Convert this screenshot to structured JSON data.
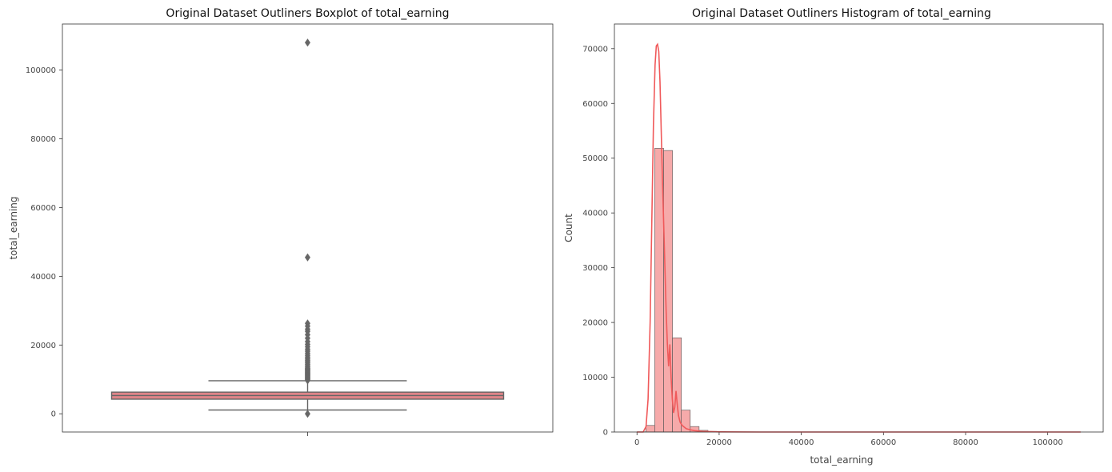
{
  "colors": {
    "box_fill": "#df8588",
    "box_edge": "#666666",
    "flier": "#666666",
    "hist_fill": "#f6aaaa",
    "hist_edge": "#555555",
    "kde_line": "#f0595a",
    "axes": "#333333"
  },
  "chart_data": [
    {
      "type": "boxplot",
      "title": "Original Dataset Outliners Boxplot of total_earning",
      "xlabel": "",
      "ylabel": "total_earning",
      "ylim": [
        -5300,
        113400
      ],
      "yticks": [
        0,
        20000,
        40000,
        60000,
        80000,
        100000
      ],
      "ytick_labels": [
        "0",
        "20000",
        "40000",
        "60000",
        "80000",
        "100000"
      ],
      "grid": false,
      "box": {
        "min_whisker": 1100,
        "q1": 4250,
        "median": 5300,
        "q3": 6300,
        "max_whisker": 9600
      },
      "outliers": [
        0,
        9700,
        9900,
        10100,
        10300,
        10500,
        10700,
        10900,
        11100,
        11300,
        11500,
        11700,
        11900,
        12100,
        12300,
        12500,
        12700,
        12900,
        13100,
        13300,
        13600,
        14000,
        14400,
        14800,
        15200,
        15600,
        16000,
        16500,
        17000,
        17600,
        18200,
        18800,
        19500,
        20200,
        21000,
        22000,
        23000,
        24000,
        24600,
        25500,
        26300,
        45500,
        108000
      ]
    },
    {
      "type": "histogram",
      "title": "Original Dataset Outliners Histogram of total_earning",
      "xlabel": "total_earning",
      "ylabel": "Count",
      "xlim": [
        -5500,
        113500
      ],
      "ylim": [
        0,
        74500
      ],
      "xticks": [
        0,
        20000,
        40000,
        60000,
        80000,
        100000
      ],
      "xtick_labels": [
        "0",
        "20000",
        "40000",
        "60000",
        "80000",
        "100000"
      ],
      "yticks": [
        0,
        10000,
        20000,
        30000,
        40000,
        50000,
        60000,
        70000
      ],
      "ytick_labels": [
        "0",
        "10000",
        "20000",
        "30000",
        "40000",
        "50000",
        "60000",
        "70000"
      ],
      "grid": false,
      "bin_start": 0,
      "bin_width": 2160,
      "counts": [
        40,
        1200,
        51800,
        51400,
        17200,
        4000,
        1000,
        300,
        120,
        60,
        30,
        20,
        15,
        10,
        8,
        6,
        5,
        4,
        3,
        2,
        2,
        2,
        1,
        1,
        1,
        1,
        1,
        1,
        1,
        1,
        1,
        0,
        0,
        0,
        0,
        0,
        0,
        0,
        0,
        0,
        0,
        0,
        0,
        0,
        0,
        0,
        0,
        0,
        0,
        1
      ],
      "kde": {
        "x": [
          0,
          1500,
          2200,
          2700,
          3200,
          3600,
          4000,
          4400,
          4700,
          5000,
          5300,
          5600,
          5900,
          6200,
          6500,
          6800,
          7100,
          7400,
          7700,
          8000,
          8300,
          8600,
          8900,
          9200,
          9500,
          9800,
          10100,
          10500,
          11000,
          11500,
          12000,
          13000,
          14000,
          16000,
          20000,
          30000,
          50000,
          80000,
          108000
        ],
        "y": [
          0,
          0,
          1000,
          6000,
          20000,
          38000,
          56000,
          67000,
          70500,
          70800,
          69500,
          64000,
          55000,
          46000,
          38000,
          30000,
          22000,
          16000,
          12000,
          16000,
          10000,
          6000,
          3500,
          4500,
          7500,
          5000,
          3000,
          1800,
          1200,
          900,
          600,
          400,
          250,
          100,
          30,
          0,
          0,
          0,
          0
        ]
      }
    }
  ]
}
